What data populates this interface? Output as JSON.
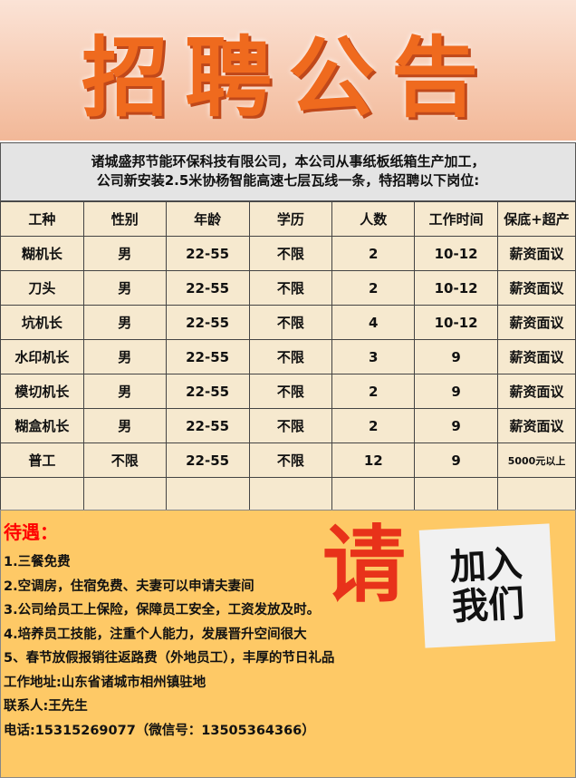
{
  "banner": {
    "title": "招聘公告"
  },
  "intro": {
    "line1": "诸城盛邦节能环保科技有限公司，本公司从事纸板纸箱生产加工，",
    "line2": "公司新安装2.5米协杨智能高速七层瓦线一条，特招聘以下岗位:"
  },
  "table": {
    "headers": [
      "工种",
      "性别",
      "年龄",
      "学历",
      "人数",
      "工作时间",
      "保底+超产"
    ],
    "rows": [
      [
        "糊机长",
        "男",
        "22-55",
        "不限",
        "2",
        "10-12",
        "薪资面议"
      ],
      [
        "刀头",
        "男",
        "22-55",
        "不限",
        "2",
        "10-12",
        "薪资面议"
      ],
      [
        "坑机长",
        "男",
        "22-55",
        "不限",
        "4",
        "10-12",
        "薪资面议"
      ],
      [
        "水印机长",
        "男",
        "22-55",
        "不限",
        "3",
        "9",
        "薪资面议"
      ],
      [
        "模切机长",
        "男",
        "22-55",
        "不限",
        "2",
        "9",
        "薪资面议"
      ],
      [
        "糊盒机长",
        "男",
        "22-55",
        "不限",
        "2",
        "9",
        "薪资面议"
      ],
      [
        "普工",
        "不限",
        "22-55",
        "不限",
        "12",
        "9",
        "5000元以上"
      ]
    ]
  },
  "perks": {
    "title": "待遇：",
    "items": [
      "1.三餐免费",
      "2.空调房，住宿免费、夫妻可以申请夫妻间",
      "3.公司给员工上保险，保障员工安全，工资发放及时。",
      "4.培养员工技能，注重个人能力，发展晋升空间很大",
      "5、春节放假报销往返路费（外地员工），丰厚的节日礼品",
      "工作地址:山东省诸城市相州镇驻地",
      "联系人:王先生",
      "电话:15315269077（微信号：13505364366）"
    ],
    "qing": "请",
    "join_line1": "加入",
    "join_line2": "我们"
  }
}
